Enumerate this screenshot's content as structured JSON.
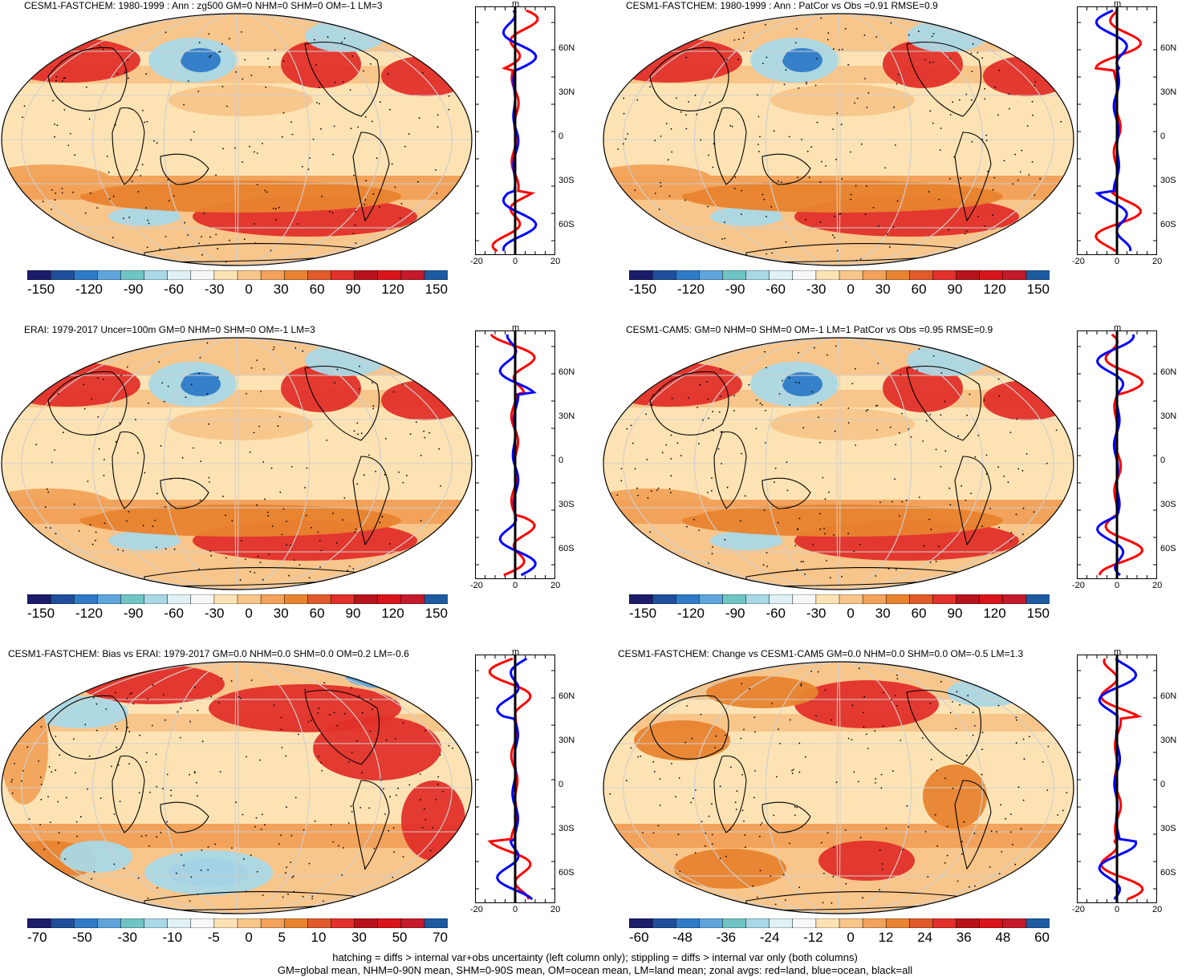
{
  "panels": [
    {
      "id": "p1",
      "title": "CESM1-FASTCHEM: 1980-1999 : Ann : zg500 GM=0 NHM=0 SHM=0 OM=-1 LM=3",
      "colorbar_labels": [
        "-150",
        "-120",
        "-90",
        "-60",
        "-30",
        "0",
        "30",
        "60",
        "90",
        "120",
        "150"
      ]
    },
    {
      "id": "p2",
      "title": "CESM1-FASTCHEM: 1980-1999 : Ann : PatCor vs Obs =0.91 RMSE=0.9",
      "colorbar_labels": [
        "-150",
        "-120",
        "-90",
        "-60",
        "-30",
        "0",
        "30",
        "60",
        "90",
        "120",
        "150"
      ]
    },
    {
      "id": "p3",
      "title": "ERAI: 1979-2017 Uncer=100m GM=0 NHM=0 SHM=0 OM=-1 LM=3",
      "colorbar_labels": [
        "-150",
        "-120",
        "-90",
        "-60",
        "-30",
        "0",
        "30",
        "60",
        "90",
        "120",
        "150"
      ]
    },
    {
      "id": "p4",
      "title": "CESM1-CAM5: GM=0 NHM=0 SHM=0 OM=-1 LM=1 PatCor vs Obs =0.95 RMSE=0.9",
      "colorbar_labels": [
        "-150",
        "-120",
        "-90",
        "-60",
        "-30",
        "0",
        "30",
        "60",
        "90",
        "120",
        "150"
      ]
    },
    {
      "id": "p5",
      "title": "CESM1-FASTCHEM: Bias vs ERAI: 1979-2017 GM=0.0 NHM=0.0 SHM=0.0 OM=0.2 LM=-0.6",
      "colorbar_labels": [
        "-70",
        "-50",
        "-30",
        "-10",
        "-5",
        "0",
        "5",
        "10",
        "30",
        "50",
        "70"
      ]
    },
    {
      "id": "p6",
      "title": "CESM1-FASTCHEM: Change vs CESM1-CAM5 GM=0.0 NHM=0.0 SHM=0.0 OM=-0.5 LM=1.3",
      "colorbar_labels": [
        "-60",
        "-48",
        "-36",
        "-24",
        "-12",
        "0",
        "12",
        "24",
        "36",
        "48",
        "60"
      ]
    }
  ],
  "zonal": {
    "unit": "m",
    "lat_labels": [
      "60N",
      "30N",
      "0",
      "30S",
      "60S"
    ],
    "x_labels": [
      "-20",
      "0",
      "20"
    ]
  },
  "colors": {
    "land": "#ff0000",
    "ocean": "#0000ff",
    "all": "#000000",
    "scale": [
      "#1c1c6b",
      "#1f4f9a",
      "#2f7bc8",
      "#5ea5dc",
      "#6fc4c4",
      "#a9d8e6",
      "#dff1f5",
      "#f7f7f7",
      "#fde3b4",
      "#f8c58a",
      "#f2a25a",
      "#e8832f",
      "#e05a2a",
      "#e2302a",
      "#b8131a",
      "#d9141b",
      "#c41a2a",
      "#1d5aa0"
    ]
  },
  "footer": {
    "line1": "hatching = diffs > internal var+obs uncertainty (left column only); stippling = diffs > internal var only (both columns)",
    "line2": "GM=global mean, NHM=0-90N mean, SHM=0-90S mean, OM=ocean mean, LM=land mean; zonal avgs: red=land, blue=ocean, black=all"
  }
}
